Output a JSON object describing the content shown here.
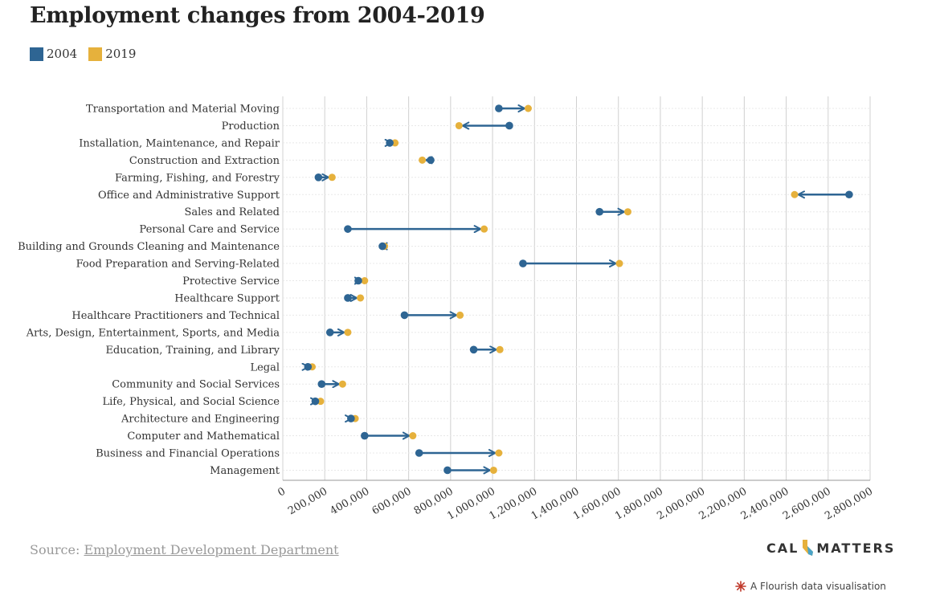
{
  "header": {
    "title": "Employment changes from 2004-2019"
  },
  "colors": {
    "series_2004": "#2e6593",
    "series_2019": "#e6b13c",
    "grid": "#d0d0d0",
    "row_line": "#e8e8e8"
  },
  "footer": {
    "source_prefix": "Source: ",
    "source_link": "Employment Development Department",
    "logo_left": "CAL",
    "logo_right": "MATTERS",
    "flourish_text": "A Flourish data visualisation"
  },
  "chart_data": {
    "type": "dumbbell",
    "title": "Employment changes from 2004-2019",
    "xlabel": "",
    "ylabel": "",
    "xlim": [
      0,
      2800000
    ],
    "xticks": [
      0,
      200000,
      400000,
      600000,
      800000,
      1000000,
      1200000,
      1400000,
      1600000,
      1800000,
      2000000,
      2200000,
      2400000,
      2600000,
      2800000
    ],
    "xtick_labels": [
      "0",
      "200,000",
      "400,000",
      "600,000",
      "800,000",
      "1,000,000",
      "1,200,000",
      "1,400,000",
      "1,600,000",
      "1,800,000",
      "2,000,000",
      "2,200,000",
      "2,400,000",
      "2,600,000",
      "2,800,000"
    ],
    "grid": true,
    "legend_position": "top-left",
    "series": [
      {
        "name": "2004",
        "key": "v2004"
      },
      {
        "name": "2019",
        "key": "v2019"
      }
    ],
    "rows": [
      {
        "category": "Transportation and Material Moving",
        "v2004": 1030000,
        "v2019": 1170000
      },
      {
        "category": "Production",
        "v2004": 1080000,
        "v2019": 840000
      },
      {
        "category": "Installation, Maintenance, and Repair",
        "v2004": 510000,
        "v2019": 535000
      },
      {
        "category": "Construction and Extraction",
        "v2004": 705000,
        "v2019": 665000
      },
      {
        "category": "Farming, Fishing, and Forestry",
        "v2004": 170000,
        "v2019": 235000
      },
      {
        "category": "Office and Administrative Support",
        "v2004": 2700000,
        "v2019": 2440000
      },
      {
        "category": "Sales and Related",
        "v2004": 1510000,
        "v2019": 1645000
      },
      {
        "category": "Personal Care and Service",
        "v2004": 310000,
        "v2019": 960000
      },
      {
        "category": "Building and Grounds Cleaning and Maintenance",
        "v2004": 475000,
        "v2019": 485000
      },
      {
        "category": "Food Preparation and Serving-Related",
        "v2004": 1145000,
        "v2019": 1605000
      },
      {
        "category": "Protective Service",
        "v2004": 360000,
        "v2019": 390000
      },
      {
        "category": "Healthcare Support",
        "v2004": 310000,
        "v2019": 370000
      },
      {
        "category": "Healthcare Practitioners and Technical",
        "v2004": 580000,
        "v2019": 845000
      },
      {
        "category": "Arts, Design, Entertainment, Sports, and Media",
        "v2004": 225000,
        "v2019": 310000
      },
      {
        "category": "Education, Training, and Library",
        "v2004": 910000,
        "v2019": 1035000
      },
      {
        "category": "Legal",
        "v2004": 120000,
        "v2019": 140000
      },
      {
        "category": "Community and Social Services",
        "v2004": 185000,
        "v2019": 285000
      },
      {
        "category": "Life, Physical, and Social Science",
        "v2004": 155000,
        "v2019": 180000
      },
      {
        "category": "Architecture and Engineering",
        "v2004": 325000,
        "v2019": 345000
      },
      {
        "category": "Computer and Mathematical",
        "v2004": 390000,
        "v2019": 620000
      },
      {
        "category": "Business and Financial Operations",
        "v2004": 650000,
        "v2019": 1030000
      },
      {
        "category": "Management",
        "v2004": 785000,
        "v2019": 1005000
      }
    ]
  }
}
